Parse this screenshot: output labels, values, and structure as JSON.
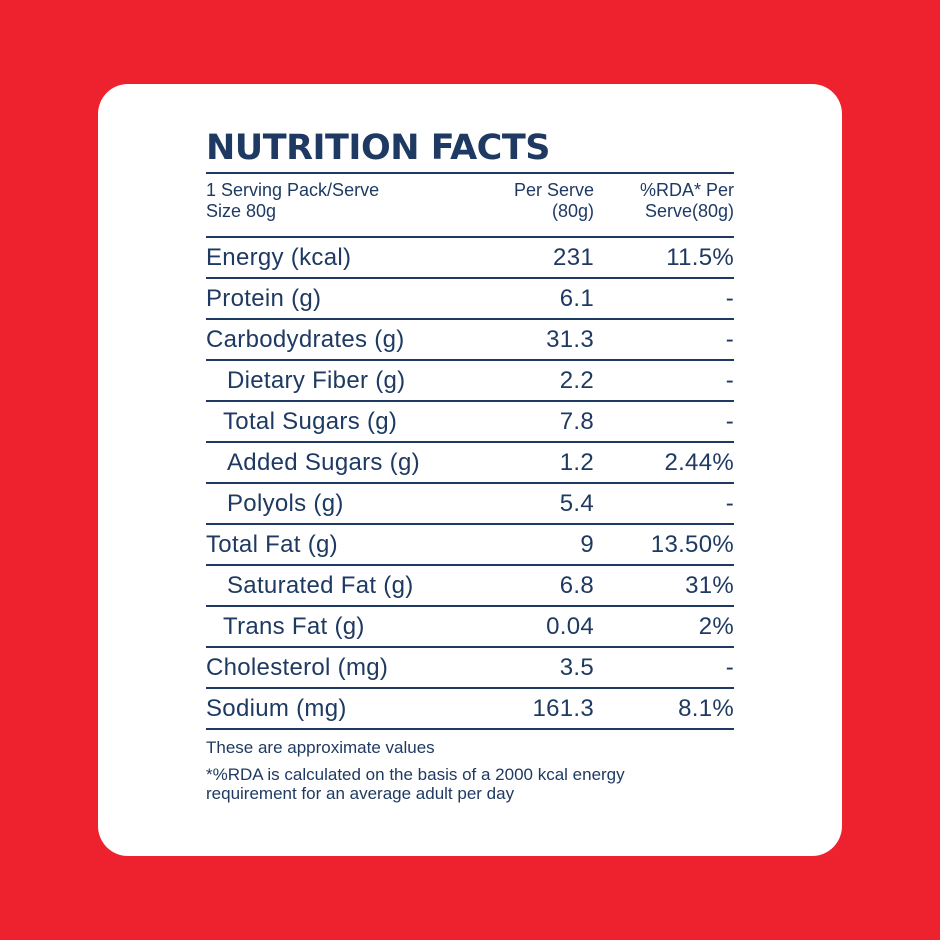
{
  "title": "NUTRITION FACTS",
  "header": {
    "serving_line1": "1 Serving Pack/Serve",
    "serving_line2": "Size 80g",
    "per_serve_line1": "Per Serve",
    "per_serve_line2": "(80g)",
    "rda_line1": "%RDA* Per",
    "rda_line2": "Serve(80g)"
  },
  "rows": [
    {
      "name": "Energy (kcal)",
      "per_serve": "231",
      "rda": "11.5%"
    },
    {
      "name": "Protein (g)",
      "per_serve": "6.1",
      "rda": "-"
    },
    {
      "name": "Carbodydrates (g)",
      "per_serve": "31.3",
      "rda": "-"
    },
    {
      "name": "Dietary Fiber (g)",
      "per_serve": "2.2",
      "rda": "-"
    },
    {
      "name": "Total Sugars (g)",
      "per_serve": "7.8",
      "rda": "-"
    },
    {
      "name": "Added Sugars (g)",
      "per_serve": "1.2",
      "rda": "2.44%"
    },
    {
      "name": "Polyols (g)",
      "per_serve": "5.4",
      "rda": "-"
    },
    {
      "name": "Total Fat (g)",
      "per_serve": "9",
      "rda": "13.50%"
    },
    {
      "name": "Saturated Fat (g)",
      "per_serve": "6.8",
      "rda": "31%"
    },
    {
      "name": "Trans Fat (g)",
      "per_serve": "0.04",
      "rda": "2%"
    },
    {
      "name": "Cholesterol (mg)",
      "per_serve": "3.5",
      "rda": "-"
    },
    {
      "name": "Sodium (mg)",
      "per_serve": "161.3",
      "rda": "8.1%"
    }
  ],
  "notes": {
    "approx": "These are approximate values",
    "rda_line1": "*%RDA is calculated on the basis of a 2000 kcal energy",
    "rda_line2": "requirement for an average adult per day"
  },
  "colors": {
    "background": "#ee222e",
    "card": "#ffffff",
    "text": "#1f3a62"
  }
}
